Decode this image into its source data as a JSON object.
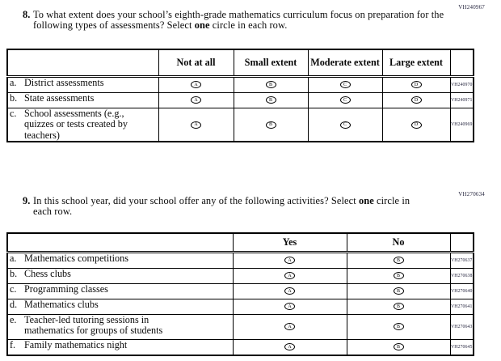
{
  "q8": {
    "vh_code": "VH240967",
    "number": "8.",
    "text_pre": "To what extent does your school’s eighth-grade mathematics curriculum focus on preparation for the following types of assessments? Select ",
    "text_bold": "one",
    "text_post": " circle in each row.",
    "table": {
      "columns": [
        "Not at all",
        "Small extent",
        "Moderate extent",
        "Large extent"
      ],
      "option_letters": [
        "A",
        "B",
        "C",
        "D"
      ],
      "rows": [
        {
          "letter": "a.",
          "label": "District assessments",
          "vh_code": "VH240970"
        },
        {
          "letter": "b.",
          "label": "State assessments",
          "vh_code": "VH240971"
        },
        {
          "letter": "c.",
          "label": "School assessments (e.g., quizzes or tests created by teachers)",
          "vh_code": "VH240969"
        }
      ]
    }
  },
  "q9": {
    "vh_code": "VH270634",
    "number": "9.",
    "text_pre": "In this school year, did your school offer any of the following activities? Select ",
    "text_bold": "one",
    "text_post": " circle in each row.",
    "table": {
      "columns": [
        "Yes",
        "No"
      ],
      "option_letters": [
        "A",
        "B"
      ],
      "rows": [
        {
          "letter": "a.",
          "label": "Mathematics competitions",
          "vh_code": "VH270637"
        },
        {
          "letter": "b.",
          "label": "Chess clubs",
          "vh_code": "VH270638"
        },
        {
          "letter": "c.",
          "label": "Programming classes",
          "vh_code": "VH270640"
        },
        {
          "letter": "d.",
          "label": "Mathematics clubs",
          "vh_code": "VH270641"
        },
        {
          "letter": "e.",
          "label": "Teacher-led tutoring sessions in mathematics for groups of students",
          "vh_code": "VH270643"
        },
        {
          "letter": "f.",
          "label": "Family mathematics night",
          "vh_code": "VH270645"
        }
      ]
    }
  }
}
